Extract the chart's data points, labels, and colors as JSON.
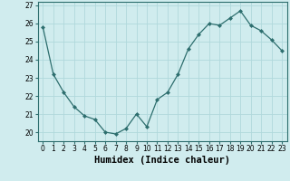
{
  "x": [
    0,
    1,
    2,
    3,
    4,
    5,
    6,
    7,
    8,
    9,
    10,
    11,
    12,
    13,
    14,
    15,
    16,
    17,
    18,
    19,
    20,
    21,
    22,
    23
  ],
  "y": [
    25.8,
    23.2,
    22.2,
    21.4,
    20.9,
    20.7,
    20.0,
    19.9,
    20.2,
    21.0,
    20.3,
    21.8,
    22.2,
    23.2,
    24.6,
    25.4,
    26.0,
    25.9,
    26.3,
    26.7,
    25.9,
    25.6,
    25.1,
    24.5
  ],
  "line_color": "#2d6e6e",
  "marker": "D",
  "marker_size": 2,
  "background_color": "#d0ecee",
  "grid_color": "#b0d8dc",
  "xlabel": "Humidex (Indice chaleur)",
  "ylabel": "",
  "ylim": [
    19.5,
    27.2
  ],
  "yticks": [
    20,
    21,
    22,
    23,
    24,
    25,
    26,
    27
  ],
  "xticks": [
    0,
    1,
    2,
    3,
    4,
    5,
    6,
    7,
    8,
    9,
    10,
    11,
    12,
    13,
    14,
    15,
    16,
    17,
    18,
    19,
    20,
    21,
    22,
    23
  ],
  "tick_fontsize": 5.5,
  "xlabel_fontsize": 7.5
}
